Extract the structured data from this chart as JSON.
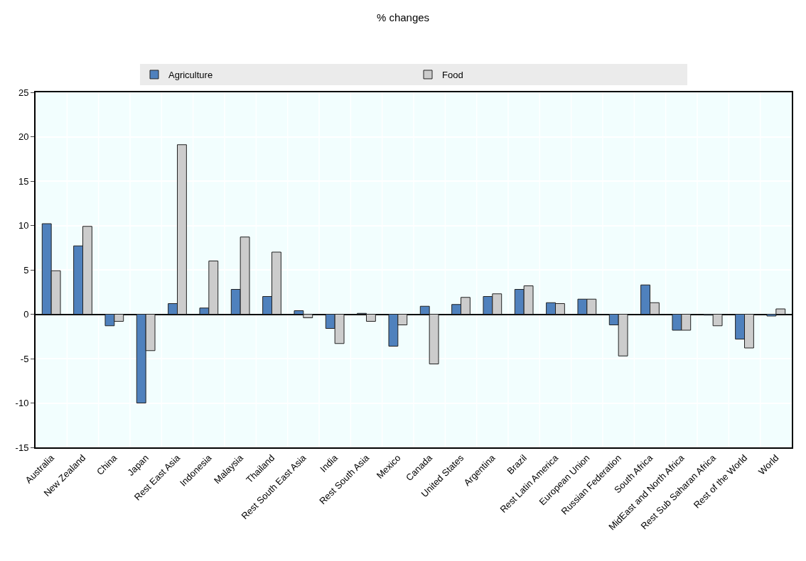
{
  "chart_data": {
    "type": "bar",
    "title": "% changes",
    "categories": [
      "Australia",
      "New Zealand",
      "China",
      "Japan",
      "Rest East Asia",
      "Indonesia",
      "Malaysia",
      "Thailand",
      "Rest South East Asia",
      "India",
      "Rest South Asia",
      "Mexico",
      "Canada",
      "United States",
      "Argentina",
      "Brazil",
      "Rest Latin America",
      "European Union",
      "Russian Federation",
      "South Africa",
      "MidEast and North Africa",
      "Rest Sub Saharan Africa",
      "Rest of the World",
      "World"
    ],
    "series": [
      {
        "name": "Agriculture",
        "color": "#4f81bd",
        "values": [
          10.2,
          7.7,
          -1.3,
          -10.0,
          1.2,
          0.7,
          2.8,
          2.0,
          0.4,
          -1.6,
          0.1,
          -3.6,
          0.9,
          1.1,
          2.0,
          2.8,
          1.3,
          1.7,
          -1.2,
          3.3,
          -1.8,
          -0.1,
          -2.8,
          -0.2
        ]
      },
      {
        "name": "Food",
        "color": "#cccccc",
        "values": [
          4.9,
          9.9,
          -0.8,
          -4.1,
          19.1,
          6.0,
          8.7,
          7.0,
          -0.4,
          -3.3,
          -0.8,
          -1.2,
          -5.6,
          1.9,
          2.3,
          3.2,
          1.2,
          1.7,
          -4.7,
          1.3,
          -1.8,
          -1.3,
          -3.8,
          0.6
        ]
      }
    ],
    "ylim": [
      -15,
      25
    ],
    "yticks": [
      -15,
      -10,
      -5,
      0,
      5,
      10,
      15,
      20,
      25
    ],
    "grid": true,
    "legend": "top"
  }
}
